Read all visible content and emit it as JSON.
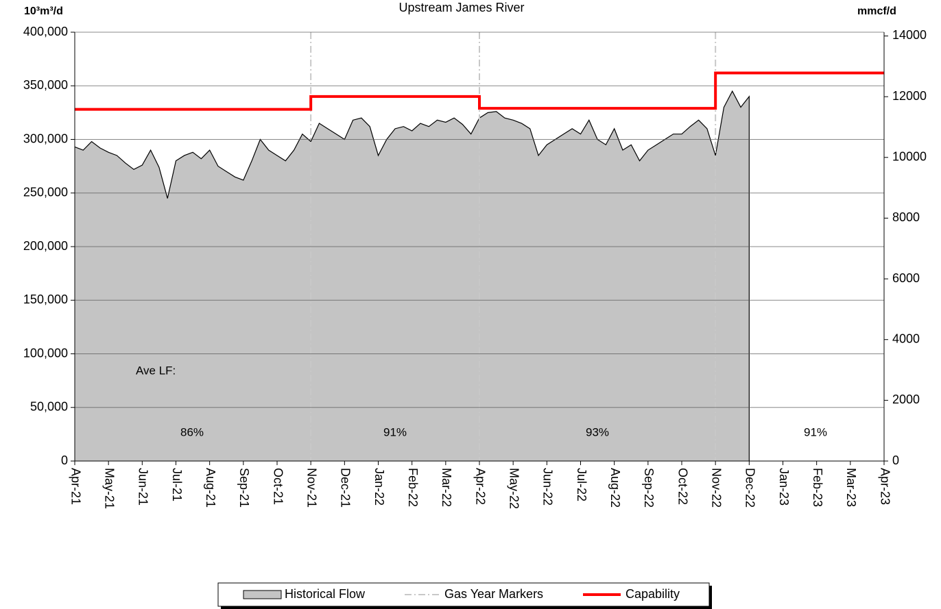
{
  "chart_data": {
    "type": "area-step",
    "title": "Upstream James River",
    "y_label": "10³m³/d",
    "y2_label": "mmcf/d",
    "categories": [
      "Apr-21",
      null,
      null,
      null,
      "May-21",
      null,
      null,
      null,
      "Jun-21",
      null,
      null,
      null,
      "Jul-21",
      null,
      null,
      null,
      "Aug-21",
      null,
      null,
      null,
      "Sep-21",
      null,
      null,
      null,
      "Oct-21",
      null,
      null,
      null,
      "Nov-21",
      null,
      null,
      null,
      "Dec-21",
      null,
      null,
      null,
      "Jan-22",
      null,
      null,
      null,
      "Feb-22",
      null,
      null,
      null,
      "Mar-22",
      null,
      null,
      null,
      "Apr-22",
      null,
      null,
      null,
      "May-22",
      null,
      null,
      null,
      "Jun-22",
      null,
      null,
      null,
      "Jul-22",
      null,
      null,
      null,
      "Aug-22",
      null,
      null,
      null,
      "Sep-22",
      null,
      null,
      null,
      "Oct-22",
      null,
      null,
      null,
      "Nov-22",
      null,
      null,
      null,
      "Dec-22",
      null,
      null,
      null,
      "Jan-23",
      null,
      null,
      null,
      "Feb-23",
      null,
      null,
      null,
      "Mar-23",
      null,
      null,
      null,
      "Apr-23"
    ],
    "series": [
      {
        "name": "Historical Flow",
        "kind": "area",
        "color": "#c4c4c4",
        "line_color": "#000000",
        "values": [
          293000,
          290000,
          298000,
          292000,
          288000,
          285000,
          278000,
          272000,
          276000,
          290000,
          274000,
          245000,
          280000,
          285000,
          288000,
          282000,
          290000,
          275000,
          270000,
          265000,
          262000,
          280000,
          300000,
          290000,
          285000,
          280000,
          290000,
          305000,
          298000,
          315000,
          310000,
          305000,
          300000,
          318000,
          320000,
          312000,
          285000,
          300000,
          310000,
          312000,
          308000,
          315000,
          312000,
          318000,
          316000,
          320000,
          314000,
          305000,
          320000,
          325000,
          326000,
          320000,
          318000,
          315000,
          310000,
          285000,
          295000,
          300000,
          305000,
          310000,
          305000,
          318000,
          300000,
          295000,
          310000,
          290000,
          295000,
          280000,
          290000,
          295000,
          300000,
          305000,
          305000,
          312000,
          318000,
          310000,
          285000,
          330000,
          345000,
          330000,
          340000,
          null,
          null,
          null,
          null,
          null,
          null,
          null,
          null,
          null,
          null,
          null,
          null,
          null,
          null,
          null,
          null
        ]
      },
      {
        "name": "Gas Year Markers",
        "kind": "marker",
        "color": "#c8c8c8",
        "at": [
          "Nov-21",
          "Apr-22",
          "Nov-22"
        ]
      },
      {
        "name": "Capability",
        "kind": "step",
        "color": "#ff0000",
        "values": [
          328000,
          328000,
          328000,
          328000,
          328000,
          328000,
          328000,
          328000,
          328000,
          328000,
          328000,
          328000,
          328000,
          328000,
          328000,
          328000,
          328000,
          328000,
          328000,
          328000,
          328000,
          328000,
          328000,
          328000,
          328000,
          328000,
          328000,
          328000,
          340000,
          340000,
          340000,
          340000,
          340000,
          340000,
          340000,
          340000,
          340000,
          340000,
          340000,
          340000,
          340000,
          340000,
          340000,
          340000,
          340000,
          340000,
          340000,
          340000,
          329000,
          329000,
          329000,
          329000,
          329000,
          329000,
          329000,
          329000,
          329000,
          329000,
          329000,
          329000,
          329000,
          329000,
          329000,
          329000,
          329000,
          329000,
          329000,
          329000,
          329000,
          329000,
          329000,
          329000,
          329000,
          329000,
          329000,
          329000,
          362000,
          362000,
          362000,
          362000,
          362000,
          362000,
          362000,
          362000,
          362000,
          362000,
          362000,
          362000,
          362000,
          362000,
          362000,
          362000,
          362000,
          362000,
          362000,
          362000,
          362000
        ]
      }
    ],
    "ylim": [
      0,
      400000
    ],
    "yticks": [
      {
        "value": 0,
        "label": "0"
      },
      {
        "value": 50000,
        "label": "50,000"
      },
      {
        "value": 100000,
        "label": "100,000"
      },
      {
        "value": 150000,
        "label": "150,000"
      },
      {
        "value": 200000,
        "label": "200,000"
      },
      {
        "value": 250000,
        "label": "250,000"
      },
      {
        "value": 300000,
        "label": "300,000"
      },
      {
        "value": 350000,
        "label": "350,000"
      },
      {
        "value": 400000,
        "label": "400,000"
      }
    ],
    "y2lim": [
      0,
      14124
    ],
    "y2ticks": [
      0,
      2000,
      4000,
      6000,
      8000,
      10000,
      12000,
      14000
    ],
    "grid": true,
    "annotations": {
      "load_factor_title": "Ave LF:",
      "load_factors": [
        {
          "value": 86,
          "label": "86%"
        },
        {
          "value": 91,
          "label": "91%"
        },
        {
          "value": 93,
          "label": "93%"
        },
        {
          "value": 91,
          "label": "91%"
        }
      ]
    },
    "legend": "bottom"
  }
}
